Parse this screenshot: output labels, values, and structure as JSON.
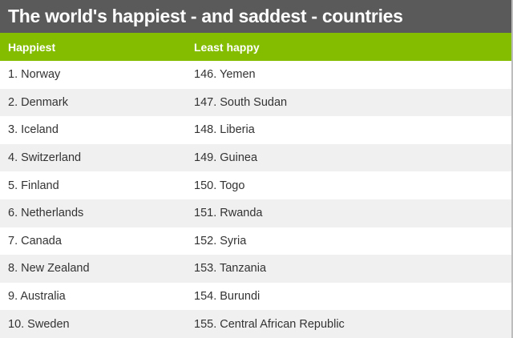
{
  "title": "The world's happiest - and saddest - countries",
  "header": {
    "happiest": "Happiest",
    "least_happy": "Least happy"
  },
  "colors": {
    "title_bg": "#5a5a5a",
    "header_bg": "#84bd00",
    "row_alt_bg": "#f0f0f0"
  },
  "rows": [
    {
      "happiest": "1. Norway",
      "least_happy": "146. Yemen"
    },
    {
      "happiest": "2. Denmark",
      "least_happy": "147. South Sudan"
    },
    {
      "happiest": "3. Iceland",
      "least_happy": "148. Liberia"
    },
    {
      "happiest": "4. Switzerland",
      "least_happy": "149. Guinea"
    },
    {
      "happiest": "5. Finland",
      "least_happy": "150. Togo"
    },
    {
      "happiest": "6. Netherlands",
      "least_happy": "151. Rwanda"
    },
    {
      "happiest": "7. Canada",
      "least_happy": "152. Syria"
    },
    {
      "happiest": "8. New Zealand",
      "least_happy": "153. Tanzania"
    },
    {
      "happiest": "9. Australia",
      "least_happy": "154. Burundi"
    },
    {
      "happiest": "10. Sweden",
      "least_happy": "155. Central African Republic"
    }
  ]
}
